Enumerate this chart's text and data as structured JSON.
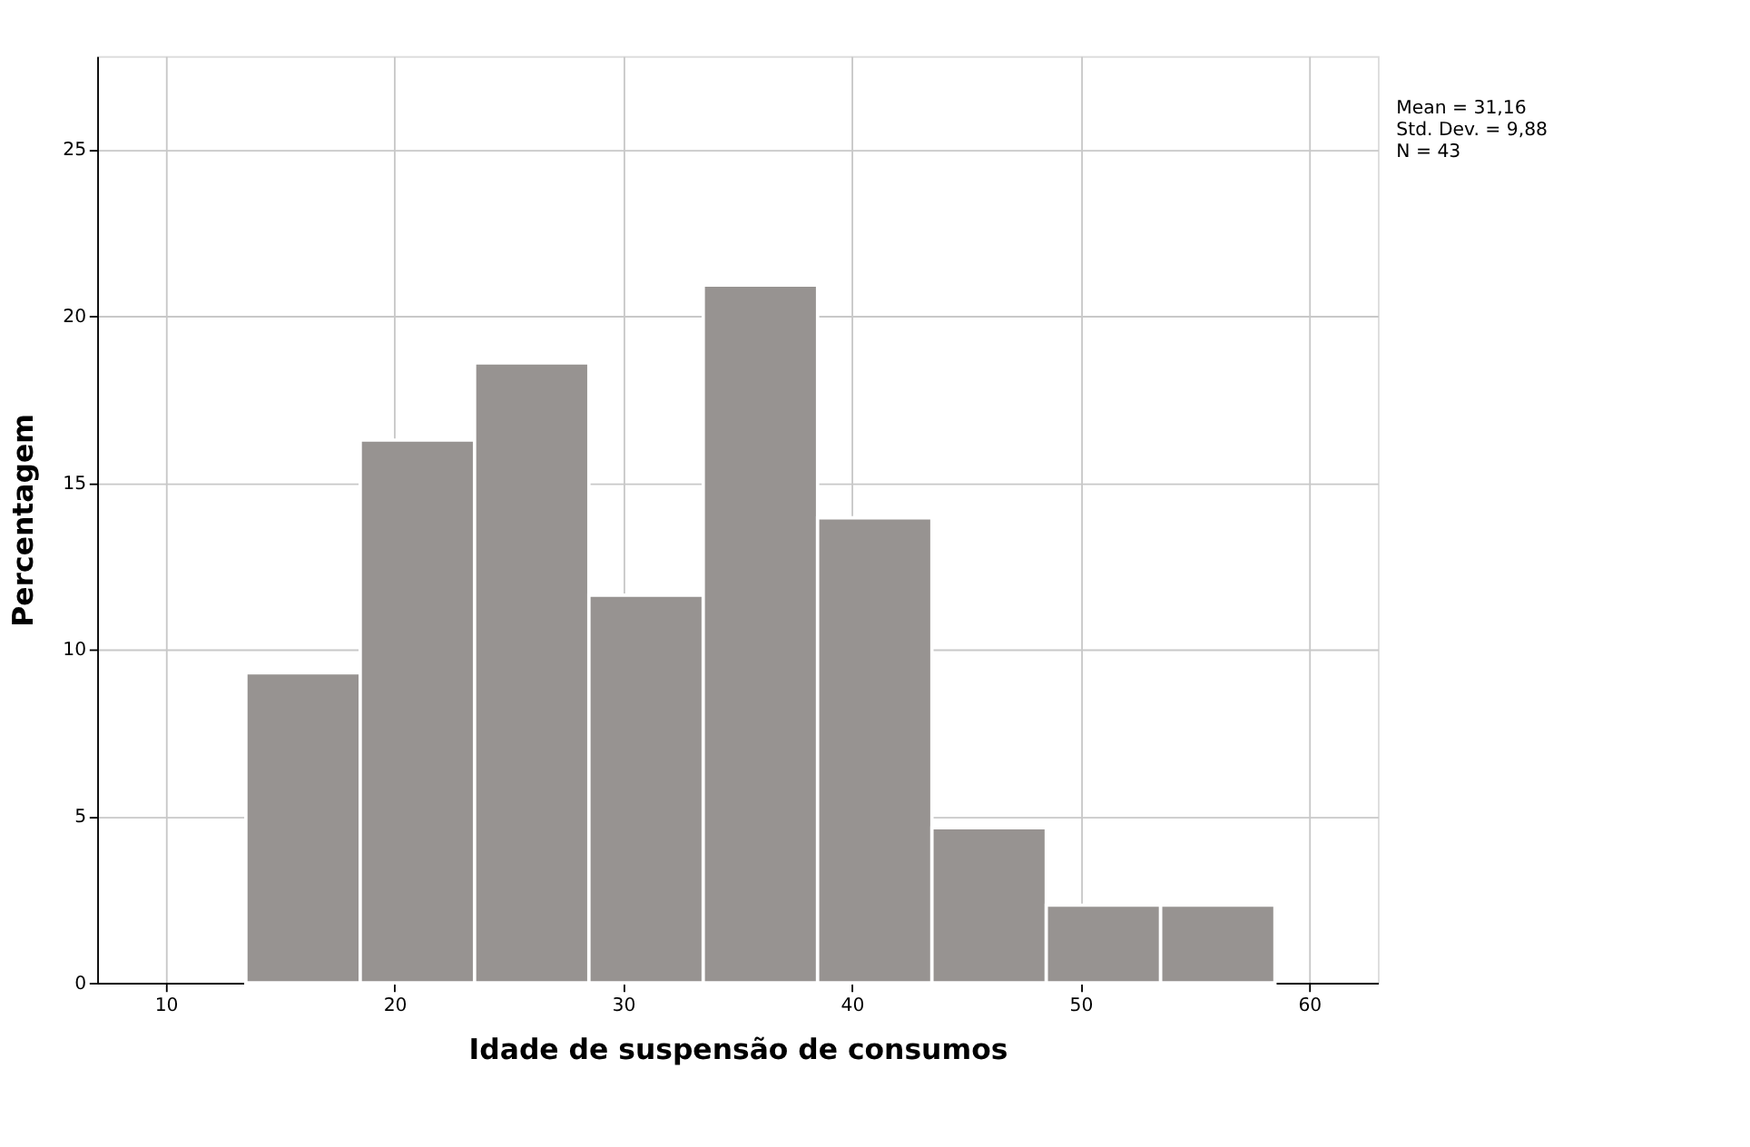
{
  "chart_data": {
    "type": "histogram",
    "xlabel": "Idade de suspensão de consumos",
    "ylabel": "Percentagem",
    "bins": [
      13.5,
      18.5,
      23.5,
      28.5,
      33.5,
      38.5,
      43.5,
      48.5,
      53.5,
      58.5
    ],
    "values": [
      9.3,
      16.28,
      18.6,
      11.63,
      20.93,
      13.95,
      4.65,
      2.33,
      2.33
    ],
    "color": "#979391",
    "xlim": [
      7,
      63
    ],
    "xticks": [
      10,
      20,
      30,
      40,
      50,
      60
    ],
    "ylim": [
      0,
      27.8
    ],
    "yticks": [
      0,
      5,
      10,
      15,
      20,
      25
    ],
    "grid": true,
    "annotations": [
      "Mean = 31,16",
      "Std. Dev. = 9,88",
      "N = 43"
    ]
  }
}
